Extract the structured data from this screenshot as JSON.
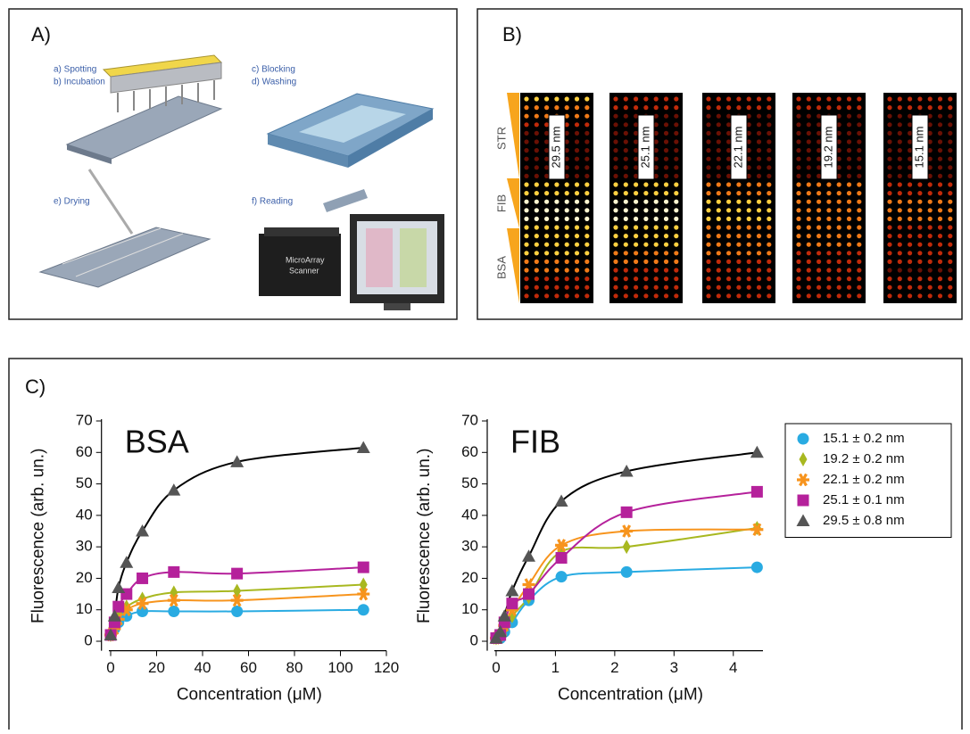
{
  "panel_a": {
    "label": "A)",
    "steps": [
      "a) Spotting",
      "b) Incubation",
      "c) Blocking",
      "d) Washing",
      "e) Drying",
      "f) Reading"
    ],
    "scanner_text": [
      "MicroArray",
      "Scanner"
    ]
  },
  "panel_b": {
    "label": "B)",
    "rows": [
      "STR",
      "FIB",
      "BSA"
    ],
    "images": [
      "29.5 nm",
      "25.1 nm",
      "22.1 nm",
      "19.2 nm",
      "15.1 nm"
    ]
  },
  "panel_c": {
    "label": "C)"
  },
  "chart_data": [
    {
      "type": "scatter",
      "title": "BSA",
      "x_label": "Concentration (μM)",
      "y_label": "Fluorescence (arb. un.)",
      "x": [
        0,
        1.7,
        3.4,
        6.9,
        13.8,
        27.5,
        55,
        110
      ],
      "xlim": [
        -4,
        120
      ],
      "xticks": [
        0,
        20,
        40,
        60,
        80,
        100,
        120
      ],
      "ylim": [
        -3,
        70
      ],
      "yticks": [
        0,
        10,
        20,
        30,
        40,
        50,
        60,
        70
      ],
      "series": [
        {
          "color": "#29abe2",
          "marker": "circle",
          "values": [
            2,
            4,
            6,
            8,
            9.5,
            9.5,
            9.5,
            10
          ]
        },
        {
          "color": "#a8b820",
          "marker": "diamond",
          "values": [
            2,
            5,
            9,
            11,
            13.5,
            15.5,
            16,
            18
          ]
        },
        {
          "color": "#f7941d",
          "marker": "asterisk",
          "values": [
            2,
            4,
            7,
            10,
            12,
            13,
            13,
            15
          ]
        },
        {
          "color": "#b5219b",
          "marker": "square",
          "values": [
            2,
            6,
            11,
            15,
            20,
            22,
            21.5,
            23.5
          ]
        },
        {
          "color": "#555555",
          "marker": "triangle",
          "values": [
            2,
            8,
            17,
            25,
            35,
            48,
            57,
            61.5
          ]
        }
      ]
    },
    {
      "type": "scatter",
      "title": "FIB",
      "x_label": "Concentration (μM)",
      "y_label": "Fluorescence (arb. un.)",
      "x": [
        0,
        0.07,
        0.14,
        0.27,
        0.55,
        1.1,
        2.2,
        4.4
      ],
      "xlim": [
        -0.15,
        4.5
      ],
      "xticks": [
        0,
        1,
        2,
        3,
        4
      ],
      "ylim": [
        -3,
        70
      ],
      "yticks": [
        0,
        10,
        20,
        30,
        40,
        50,
        60,
        70
      ],
      "legend": "right",
      "series": [
        {
          "name": "15.1 ± 0.2 nm",
          "color": "#29abe2",
          "marker": "circle",
          "values": [
            1,
            1,
            3,
            6,
            13,
            20.5,
            22,
            23.5
          ]
        },
        {
          "name": "19.2 ± 0.2 nm",
          "color": "#a8b820",
          "marker": "diamond",
          "values": [
            1,
            2,
            4,
            8,
            14,
            28.5,
            30,
            36
          ]
        },
        {
          "name": "22.1 ± 0.2 nm",
          "color": "#f7941d",
          "marker": "asterisk",
          "values": [
            1,
            2,
            5,
            10,
            18,
            30.5,
            35,
            35.5
          ]
        },
        {
          "name": "25.1 ± 0.1 nm",
          "color": "#b5219b",
          "marker": "square",
          "values": [
            1,
            2,
            6,
            12,
            15,
            26.5,
            41,
            47.5
          ]
        },
        {
          "name": "29.5 ± 0.8 nm",
          "color": "#555555",
          "marker": "triangle",
          "values": [
            1,
            3,
            8,
            16,
            27,
            44.5,
            54,
            60
          ]
        }
      ]
    }
  ]
}
